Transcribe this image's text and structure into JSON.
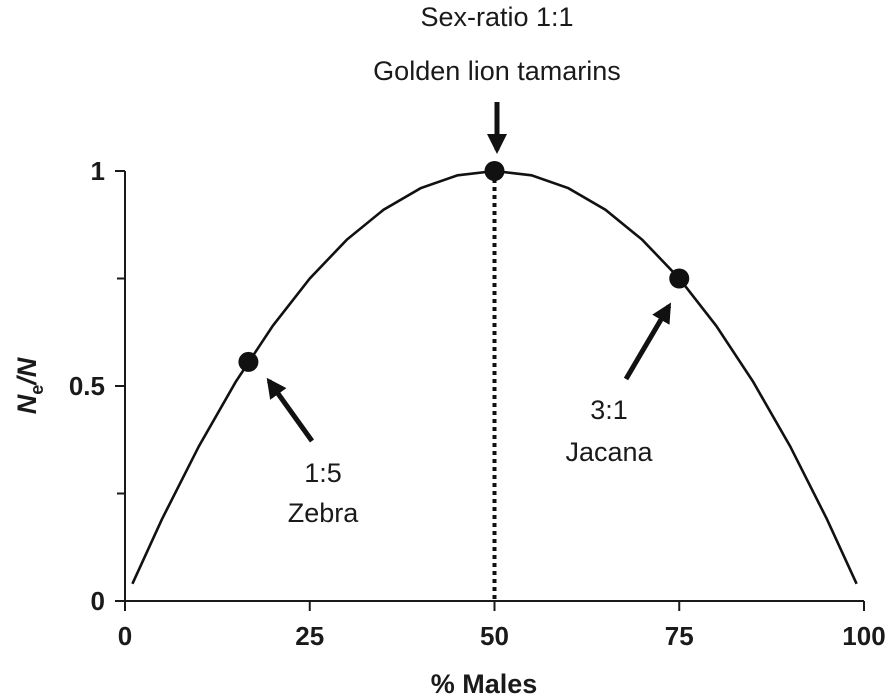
{
  "chart_data": {
    "type": "line",
    "xlabel": "% Males",
    "ylabel_main": "N",
    "ylabel_sub": "e",
    "ylabel_tail": "/N",
    "xlim": [
      0,
      100
    ],
    "ylim": [
      0,
      1
    ],
    "x_ticks": [
      0,
      25,
      50,
      75,
      100
    ],
    "x_tick_labels": [
      "0",
      "25",
      "50",
      "75",
      "100"
    ],
    "y_major_ticks": [
      0,
      0.5,
      1
    ],
    "y_tick_labels": [
      "0",
      "0.5",
      "1"
    ],
    "y_minor_ticks": [
      0.25,
      0.75
    ],
    "series": [
      {
        "curve": "Ne/N = 4·p·(1−p), p = fraction males",
        "x": [
          1,
          5,
          10,
          15,
          20,
          25,
          30,
          35,
          40,
          45,
          50,
          55,
          60,
          65,
          70,
          75,
          80,
          85,
          90,
          95,
          99
        ],
        "y": [
          0.04,
          0.19,
          0.36,
          0.51,
          0.64,
          0.75,
          0.84,
          0.91,
          0.96,
          0.99,
          1.0,
          0.99,
          0.96,
          0.91,
          0.84,
          0.75,
          0.64,
          0.51,
          0.36,
          0.19,
          0.04
        ]
      }
    ],
    "highlighted_points": [
      {
        "x": 16.7,
        "y": 0.556
      },
      {
        "x": 50,
        "y": 1.0
      },
      {
        "x": 75,
        "y": 0.75
      }
    ],
    "annotations": {
      "top_line1": "Sex-ratio 1:1",
      "top_line2": "Golden lion tamarins",
      "zebra_ratio": "1:5",
      "zebra_name": "Zebra",
      "jacana_ratio": "3:1",
      "jacana_name": "Jacana"
    },
    "reference_line": {
      "x": 50,
      "style": "dotted"
    },
    "grid": false
  }
}
